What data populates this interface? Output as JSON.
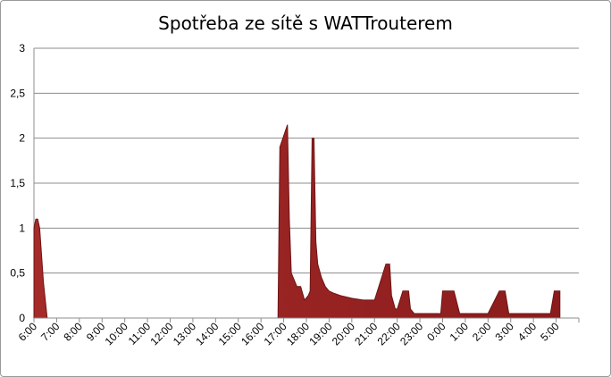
{
  "chart_data": {
    "type": "area",
    "title": "Spotřeba ze sítě s WATTrouterem",
    "xlabel": "",
    "ylabel": "",
    "ylim": [
      0,
      3
    ],
    "y_ticks": [
      "0",
      "0,5",
      "1",
      "1,5",
      "2",
      "2,5",
      "3"
    ],
    "x_ticks": [
      "6:00",
      "7:00",
      "8:00",
      "9:00",
      "10:00",
      "11:00",
      "12:00",
      "13:00",
      "14:00",
      "15:00",
      "16:00",
      "17:00",
      "18:00",
      "19:00",
      "20:00",
      "21:00",
      "22:00",
      "23:00",
      "0:00",
      "1:00",
      "2:00",
      "3:00",
      "4:00",
      "5:00"
    ],
    "grid": true,
    "legend": "none",
    "series_color": "#a52a2a",
    "series": [
      {
        "x": [
          "6:00",
          "6:05",
          "6:10",
          "6:15",
          "6:25",
          "6:35",
          "6:40",
          "6:45",
          "6:50",
          "16:45",
          "16:50",
          "17:10",
          "17:15",
          "17:20",
          "17:25",
          "17:35",
          "17:45",
          "17:55",
          "18:05",
          "18:10",
          "18:15",
          "18:20",
          "18:25",
          "18:30",
          "18:40",
          "18:50",
          "19:00",
          "19:10",
          "19:30",
          "20:00",
          "20:30",
          "21:00",
          "21:30",
          "21:40",
          "21:45",
          "21:55",
          "22:00",
          "22:15",
          "22:30",
          "22:35",
          "22:45",
          "22:50",
          "23:00",
          "23:15",
          "23:30",
          "23:55",
          "0:00",
          "0:15",
          "0:30",
          "0:45",
          "0:55",
          "1:00",
          "1:10",
          "1:20",
          "1:30",
          "1:45",
          "2:00",
          "2:30",
          "2:45",
          "2:55",
          "3:00",
          "3:10",
          "3:15",
          "3:30",
          "4:00",
          "4:30",
          "4:45",
          "4:55",
          "5:00",
          "5:10"
        ],
        "values": [
          1.0,
          1.1,
          1.1,
          1.0,
          0.4,
          0.0,
          0.0,
          0.0,
          0.0,
          0.0,
          1.9,
          2.15,
          1.1,
          0.5,
          0.45,
          0.35,
          0.35,
          0.2,
          0.25,
          0.3,
          2.0,
          2.0,
          0.85,
          0.6,
          0.45,
          0.35,
          0.3,
          0.28,
          0.25,
          0.22,
          0.2,
          0.2,
          0.6,
          0.6,
          0.25,
          0.1,
          0.1,
          0.3,
          0.3,
          0.1,
          0.05,
          0.05,
          0.05,
          0.05,
          0.05,
          0.05,
          0.3,
          0.3,
          0.3,
          0.05,
          0.05,
          0.05,
          0.05,
          0.05,
          0.05,
          0.05,
          0.05,
          0.3,
          0.3,
          0.05,
          0.05,
          0.05,
          0.05,
          0.05,
          0.05,
          0.05,
          0.05,
          0.3,
          0.3,
          0.3
        ]
      }
    ]
  }
}
